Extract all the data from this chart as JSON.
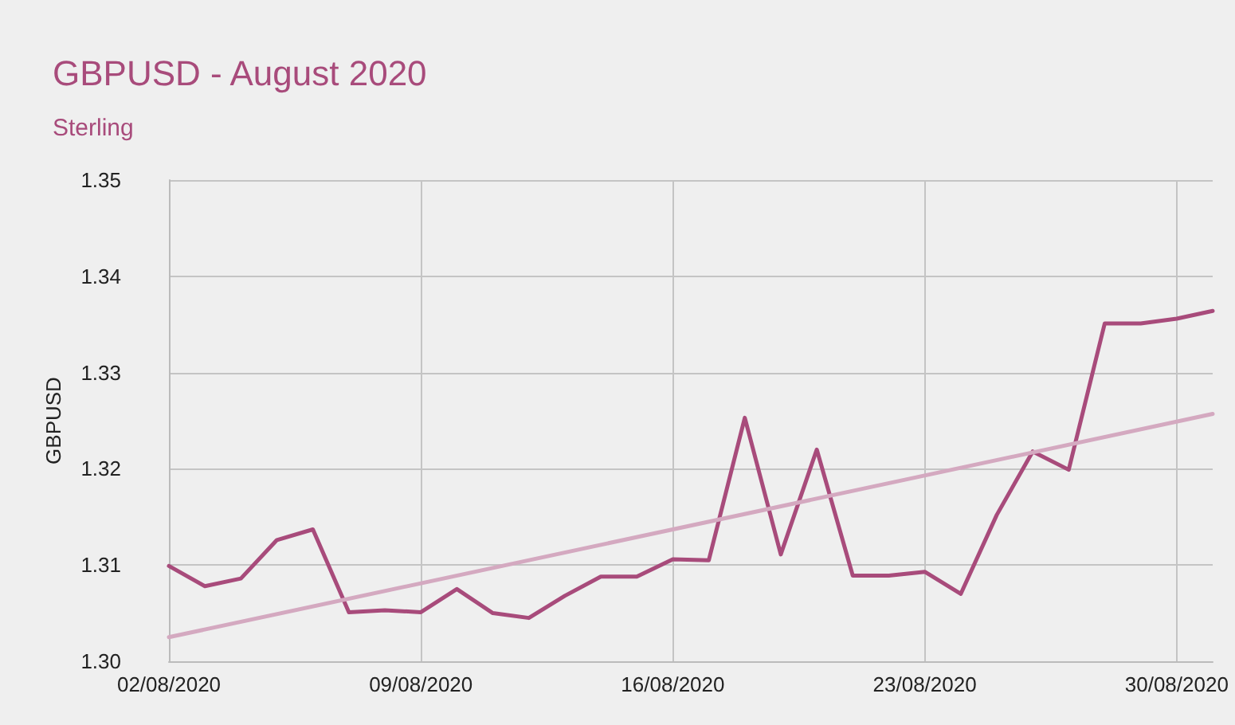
{
  "chart_data": {
    "type": "line",
    "title": "GBPUSD - August 2020",
    "subtitle": "Sterling",
    "ylabel": "GBPUSD",
    "x": [
      "2020-08-02",
      "2020-08-03",
      "2020-08-04",
      "2020-08-05",
      "2020-08-06",
      "2020-08-07",
      "2020-08-08",
      "2020-08-09",
      "2020-08-10",
      "2020-08-11",
      "2020-08-12",
      "2020-08-13",
      "2020-08-14",
      "2020-08-15",
      "2020-08-16",
      "2020-08-17",
      "2020-08-18",
      "2020-08-19",
      "2020-08-20",
      "2020-08-21",
      "2020-08-22",
      "2020-08-23",
      "2020-08-24",
      "2020-08-25",
      "2020-08-26",
      "2020-08-27",
      "2020-08-28",
      "2020-08-29",
      "2020-08-30",
      "2020-08-31"
    ],
    "series": [
      {
        "color": "#a84b7b",
        "values": [
          1.3099,
          1.3078,
          1.3086,
          1.3126,
          1.3137,
          1.3051,
          1.3053,
          1.3051,
          1.3075,
          1.305,
          1.3045,
          1.3068,
          1.3088,
          1.3088,
          1.3106,
          1.3105,
          1.3253,
          1.3111,
          1.322,
          1.3089,
          1.3089,
          1.3093,
          1.307,
          1.3152,
          1.3218,
          1.3199,
          1.3351,
          1.3351,
          1.3356,
          1.3364
        ]
      },
      {
        "type": "line",
        "color": "#d4a9c0",
        "x": [
          "2020-08-02",
          "2020-08-31"
        ],
        "values": [
          1.3025,
          1.3257
        ]
      }
    ],
    "xlim": [
      "2020-08-02",
      "2020-08-31"
    ],
    "xticks": [
      {
        "value": "2020-08-02",
        "label": "02/08/2020"
      },
      {
        "value": "2020-08-09",
        "label": "09/08/2020"
      },
      {
        "value": "2020-08-16",
        "label": "16/08/2020"
      },
      {
        "value": "2020-08-23",
        "label": "23/08/2020"
      },
      {
        "value": "2020-08-30",
        "label": "30/08/2020"
      }
    ],
    "ylim": [
      1.3,
      1.35
    ],
    "yticks": [
      {
        "value": 1.3,
        "label": "1.30"
      },
      1.31,
      1.32,
      1.33,
      1.34,
      1.35
    ],
    "grid": true,
    "marker": "none",
    "line_style": "solid"
  }
}
